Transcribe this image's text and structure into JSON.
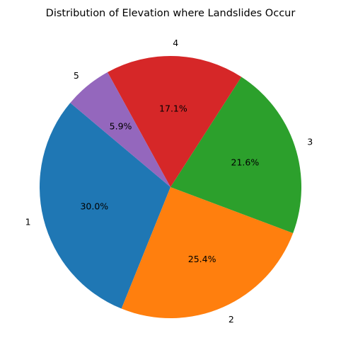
{
  "chart_data": {
    "type": "pie",
    "title": "Distribution of Elevation where Landslides Occur",
    "categories": [
      "1",
      "2",
      "3",
      "4",
      "5"
    ],
    "values": [
      30.0,
      25.4,
      21.6,
      17.1,
      5.9
    ],
    "value_labels": [
      "30.0%",
      "25.4%",
      "21.6%",
      "17.1%",
      "5.9%"
    ],
    "colors": [
      "#1f77b4",
      "#ff7f0e",
      "#2ca02c",
      "#d62728",
      "#9467bd"
    ],
    "start_angle_deg": 140,
    "direction": "counterclockwise",
    "legend": "none"
  }
}
